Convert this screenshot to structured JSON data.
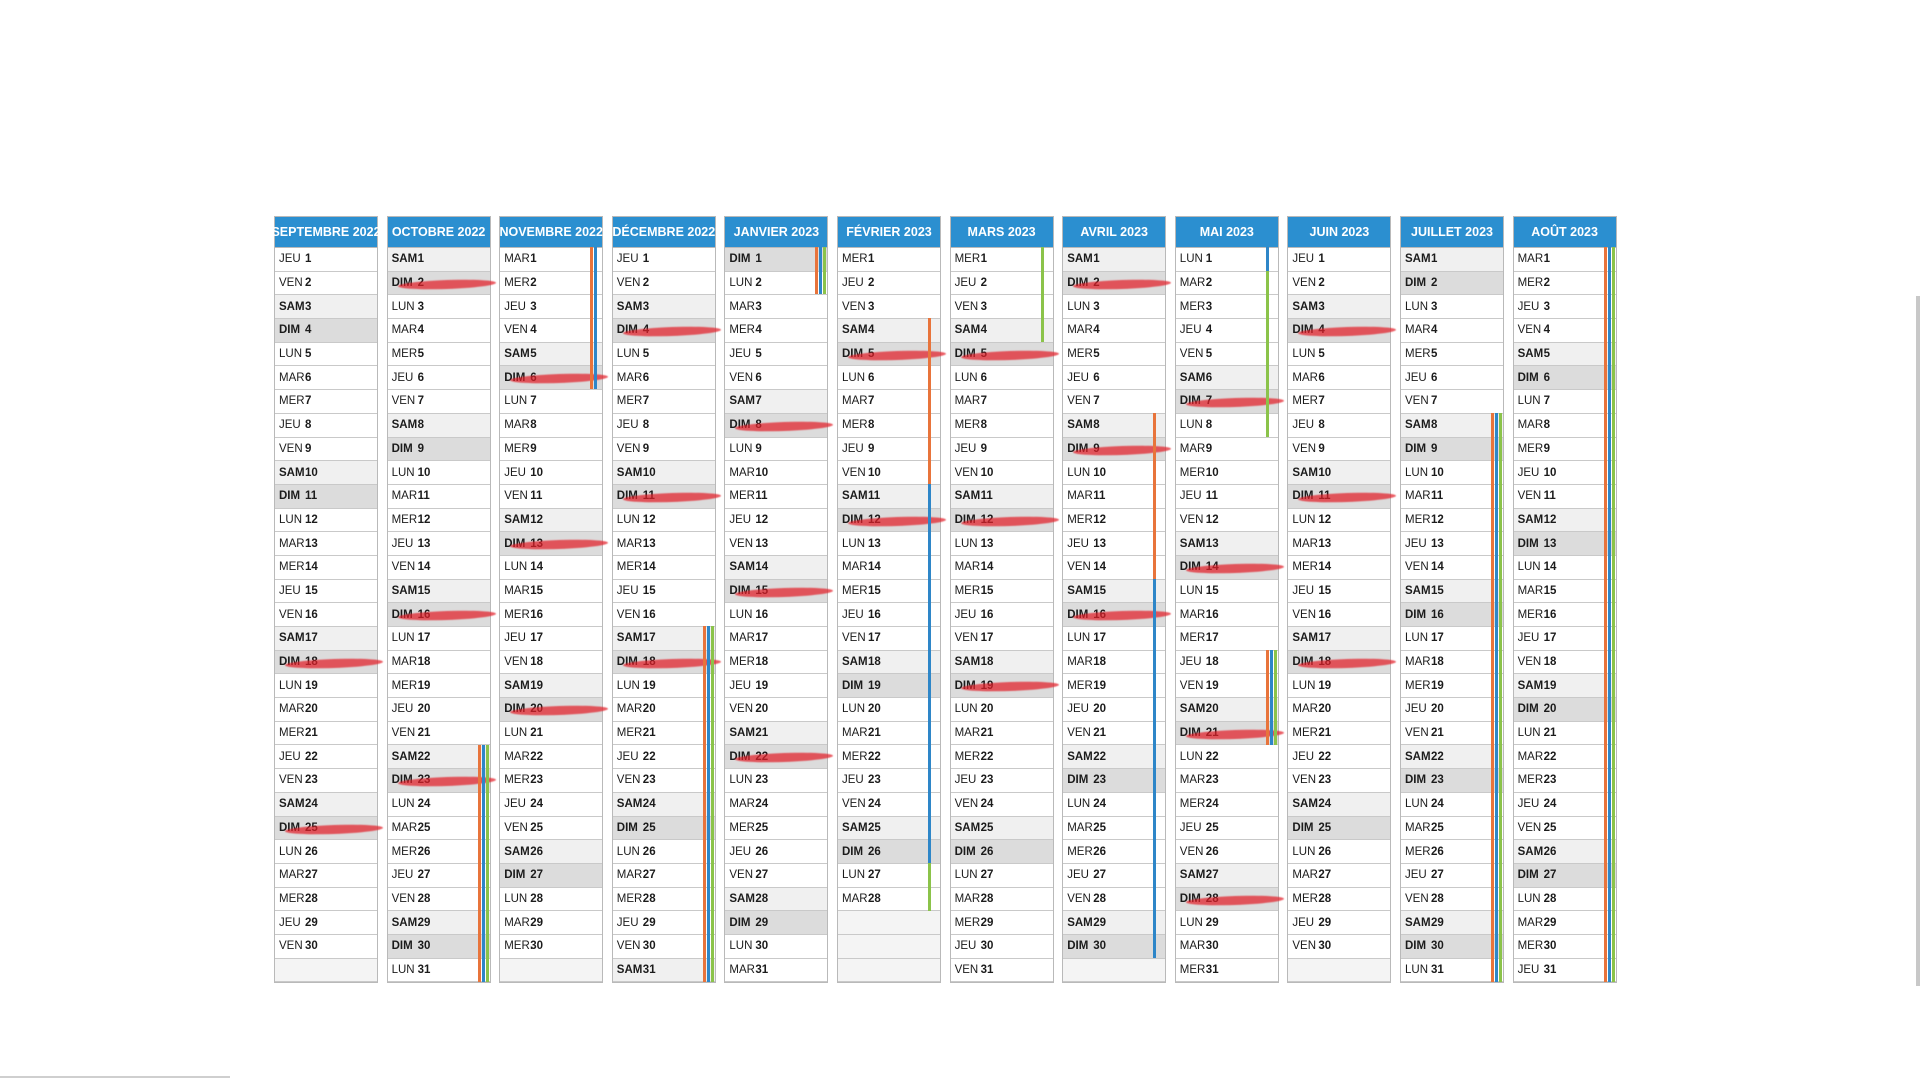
{
  "calendar": {
    "months": [
      {
        "title": "SEPTEMBRE 2022",
        "days": [
          "JEU",
          "VEN",
          "SAM",
          "DIM",
          "LUN",
          "MAR",
          "MER",
          "JEU",
          "VEN",
          "SAM",
          "DIM",
          "LUN",
          "MAR",
          "MER",
          "JEU",
          "VEN",
          "SAM",
          "DIM",
          "LUN",
          "MAR",
          "MER",
          "JEU",
          "VEN",
          "SAM",
          "DIM",
          "LUN",
          "MAR",
          "MER",
          "JEU",
          "VEN"
        ],
        "struck": [
          18,
          25
        ],
        "bars": []
      },
      {
        "title": "OCTOBRE 2022",
        "days": [
          "SAM",
          "DIM",
          "LUN",
          "MAR",
          "MER",
          "JEU",
          "VEN",
          "SAM",
          "DIM",
          "LUN",
          "MAR",
          "MER",
          "JEU",
          "VEN",
          "SAM",
          "DIM",
          "LUN",
          "MAR",
          "MER",
          "JEU",
          "VEN",
          "SAM",
          "DIM",
          "LUN",
          "MAR",
          "MER",
          "JEU",
          "VEN",
          "SAM",
          "DIM",
          "LUN"
        ],
        "struck": [
          2,
          16,
          23
        ],
        "bars": [
          {
            "from": 22,
            "to": 31,
            "colors": [
              "#e8743b",
              "#2e86c8",
              "#8bc34a"
            ]
          }
        ]
      },
      {
        "title": "NOVEMBRE 2022",
        "days": [
          "MAR",
          "MER",
          "JEU",
          "VEN",
          "SAM",
          "DIM",
          "LUN",
          "MAR",
          "MER",
          "JEU",
          "VEN",
          "SAM",
          "DIM",
          "LUN",
          "MAR",
          "MER",
          "JEU",
          "VEN",
          "SAM",
          "DIM",
          "LUN",
          "MAR",
          "MER",
          "JEU",
          "VEN",
          "SAM",
          "DIM",
          "LUN",
          "MAR",
          "MER."
        ],
        "struck": [
          6,
          13,
          20
        ],
        "bars": [
          {
            "from": 1,
            "to": 6,
            "colors": [
              "#e8743b",
              "#2e86c8"
            ]
          }
        ]
      },
      {
        "title": "DÉCEMBRE 2022",
        "days": [
          "JEU",
          "VEN",
          "SAM",
          "DIM",
          "LUN",
          "MAR",
          "MER",
          "JEU",
          "VEN",
          "SAM",
          "DIM",
          "LUN",
          "MAR",
          "MER",
          "JEU",
          "VEN",
          "SAM",
          "DIM",
          "LUN",
          "MAR",
          "MER",
          "JEU",
          "VEN",
          "SAM",
          "DIM",
          "LUN",
          "MAR",
          "MER",
          "JEU",
          "VEN",
          "SAM"
        ],
        "struck": [
          4,
          11,
          18
        ],
        "bars": [
          {
            "from": 17,
            "to": 31,
            "colors": [
              "#e8743b",
              "#2e86c8",
              "#8bc34a"
            ]
          }
        ]
      },
      {
        "title": "JANVIER 2023",
        "days": [
          "DIM",
          "LUN",
          "MAR",
          "MER",
          "JEU",
          "VEN",
          "SAM",
          "DIM",
          "LUN",
          "MAR",
          "MER",
          "JEU",
          "VEN",
          "SAM",
          "DIM",
          "LUN",
          "MAR",
          "MER",
          "JEU",
          "VEN",
          "SAM",
          "DIM",
          "LUN",
          "MAR",
          "MER",
          "JEU",
          "VEN",
          "SAM",
          "DIM",
          "LUN",
          "MAR"
        ],
        "struck": [
          8,
          15,
          22
        ],
        "bars": [
          {
            "from": 1,
            "to": 2,
            "colors": [
              "#e8743b",
              "#2e86c8",
              "#8bc34a"
            ]
          }
        ]
      },
      {
        "title": "FÉVRIER 2023",
        "days": [
          "MER",
          "JEU",
          "VEN",
          "SAM",
          "DIM",
          "LUN",
          "MAR",
          "MER",
          "JEU",
          "VEN",
          "SAM",
          "DIM",
          "LUN",
          "MAR",
          "MER",
          "JEU",
          "VEN",
          "SAM",
          "DIM",
          "LUN",
          "MAR",
          "MER",
          "JEU",
          "VEN",
          "SAM",
          "DIM",
          "LUN",
          "MAR"
        ],
        "struck": [
          5,
          12
        ],
        "bars": [
          {
            "from": 4,
            "to": 10,
            "colors": [
              "#e8743b"
            ]
          },
          {
            "from": 11,
            "to": 26,
            "colors": [
              "#2e86c8"
            ]
          },
          {
            "from": 27,
            "to": 28,
            "colors": [
              "#8bc34a"
            ]
          }
        ]
      },
      {
        "title": "MARS 2023",
        "days": [
          "MER",
          "JEU",
          "VEN",
          "SAM",
          "DIM",
          "LUN",
          "MAR",
          "MER",
          "JEU",
          "VEN",
          "SAM",
          "DIM",
          "LUN",
          "MAR",
          "MER",
          "JEU",
          "VEN",
          "SAM",
          "DIM",
          "LUN",
          "MAR",
          "MER",
          "JEU",
          "VEN",
          "SAM",
          "DIM",
          "LUN",
          "MAR",
          "MER",
          "JEU",
          "VEN"
        ],
        "struck": [
          5,
          12,
          19
        ],
        "bars": [
          {
            "from": 1,
            "to": 4,
            "colors": [
              "#8bc34a"
            ]
          }
        ]
      },
      {
        "title": "AVRIL 2023",
        "days": [
          "SAM",
          "DIM",
          "LUN",
          "MAR",
          "MER",
          "JEU",
          "VEN",
          "SAM",
          "DIM",
          "LUN",
          "MAR",
          "MER",
          "JEU",
          "VEN",
          "SAM",
          "DIM",
          "LUN",
          "MAR",
          "MER",
          "JEU",
          "VEN",
          "SAM",
          "DIM",
          "LUN",
          "MAR",
          "MER",
          "JEU",
          "VEN",
          "SAM",
          "DIM"
        ],
        "struck": [
          2,
          9,
          16
        ],
        "bars": [
          {
            "from": 8,
            "to": 15,
            "colors": [
              "#e8743b"
            ]
          },
          {
            "from": 15,
            "to": 30,
            "colors": [
              "#2e86c8"
            ]
          }
        ]
      },
      {
        "title": "MAI 2023",
        "days": [
          "LUN",
          "MAR",
          "MER",
          "JEU",
          "VEN",
          "SAM",
          "DIM",
          "LUN",
          "MAR",
          "MER",
          "JEU",
          "VEN",
          "SAM",
          "DIM",
          "LUN",
          "MAR",
          "MER",
          "JEU",
          "VEN",
          "SAM",
          "DIM",
          "LUN",
          "MAR",
          "MER",
          "JEU",
          "VEN",
          "SAM",
          "DIM",
          "LUN",
          "MAR",
          "MER"
        ],
        "struck": [
          7,
          14,
          21,
          28
        ],
        "bars": [
          {
            "from": 1,
            "to": 1,
            "colors": [
              "#2e86c8"
            ]
          },
          {
            "from": 2,
            "to": 8,
            "colors": [
              "#8bc34a"
            ]
          },
          {
            "from": 18,
            "to": 21,
            "colors": [
              "#e8743b",
              "#2e86c8",
              "#8bc34a"
            ]
          }
        ]
      },
      {
        "title": "JUIN 2023",
        "days": [
          "JEU",
          "VEN",
          "SAM",
          "DIM",
          "LUN",
          "MAR",
          "MER",
          "JEU",
          "VEN",
          "SAM",
          "DIM",
          "LUN",
          "MAR",
          "MER",
          "JEU",
          "VEN",
          "SAM",
          "DIM",
          "LUN",
          "MAR",
          "MER",
          "JEU",
          "VEN",
          "SAM",
          "DIM",
          "LUN",
          "MAR",
          "MER",
          "JEU",
          "VEN"
        ],
        "struck": [
          4,
          11,
          18
        ],
        "bars": []
      },
      {
        "title": "JUILLET 2023",
        "days": [
          "SAM",
          "DIM",
          "LUN",
          "MAR",
          "MER",
          "JEU",
          "VEN",
          "SAM",
          "DIM",
          "LUN",
          "MAR",
          "MER",
          "JEU",
          "VEN",
          "SAM",
          "DIM",
          "LUN",
          "MAR",
          "MER",
          "JEU",
          "VEN",
          "SAM",
          "DIM",
          "LUN",
          "MAR",
          "MER",
          "JEU",
          "VEN",
          "SAM",
          "DIM",
          "LUN"
        ],
        "struck": [],
        "bars": [
          {
            "from": 8,
            "to": 31,
            "colors": [
              "#e8743b",
              "#2e86c8",
              "#8bc34a"
            ]
          }
        ]
      },
      {
        "title": "AOÛT 2023",
        "days": [
          "MAR",
          "MER",
          "JEU",
          "VEN",
          "SAM",
          "DIM",
          "LUN",
          "MAR",
          "MER",
          "JEU",
          "VEN",
          "SAM",
          "DIM",
          "LUN",
          "MAR",
          "MER",
          "JEU",
          "VEN",
          "SAM",
          "DIM",
          "LUN",
          "MAR",
          "MER",
          "JEU",
          "VEN",
          "SAM",
          "DIM",
          "LUN",
          "MAR",
          "MER",
          "JEU"
        ],
        "struck": [],
        "bars": [
          {
            "from": 1,
            "to": 31,
            "colors": [
              "#e8743b",
              "#2e86c8",
              "#8bc34a"
            ]
          }
        ]
      }
    ]
  }
}
